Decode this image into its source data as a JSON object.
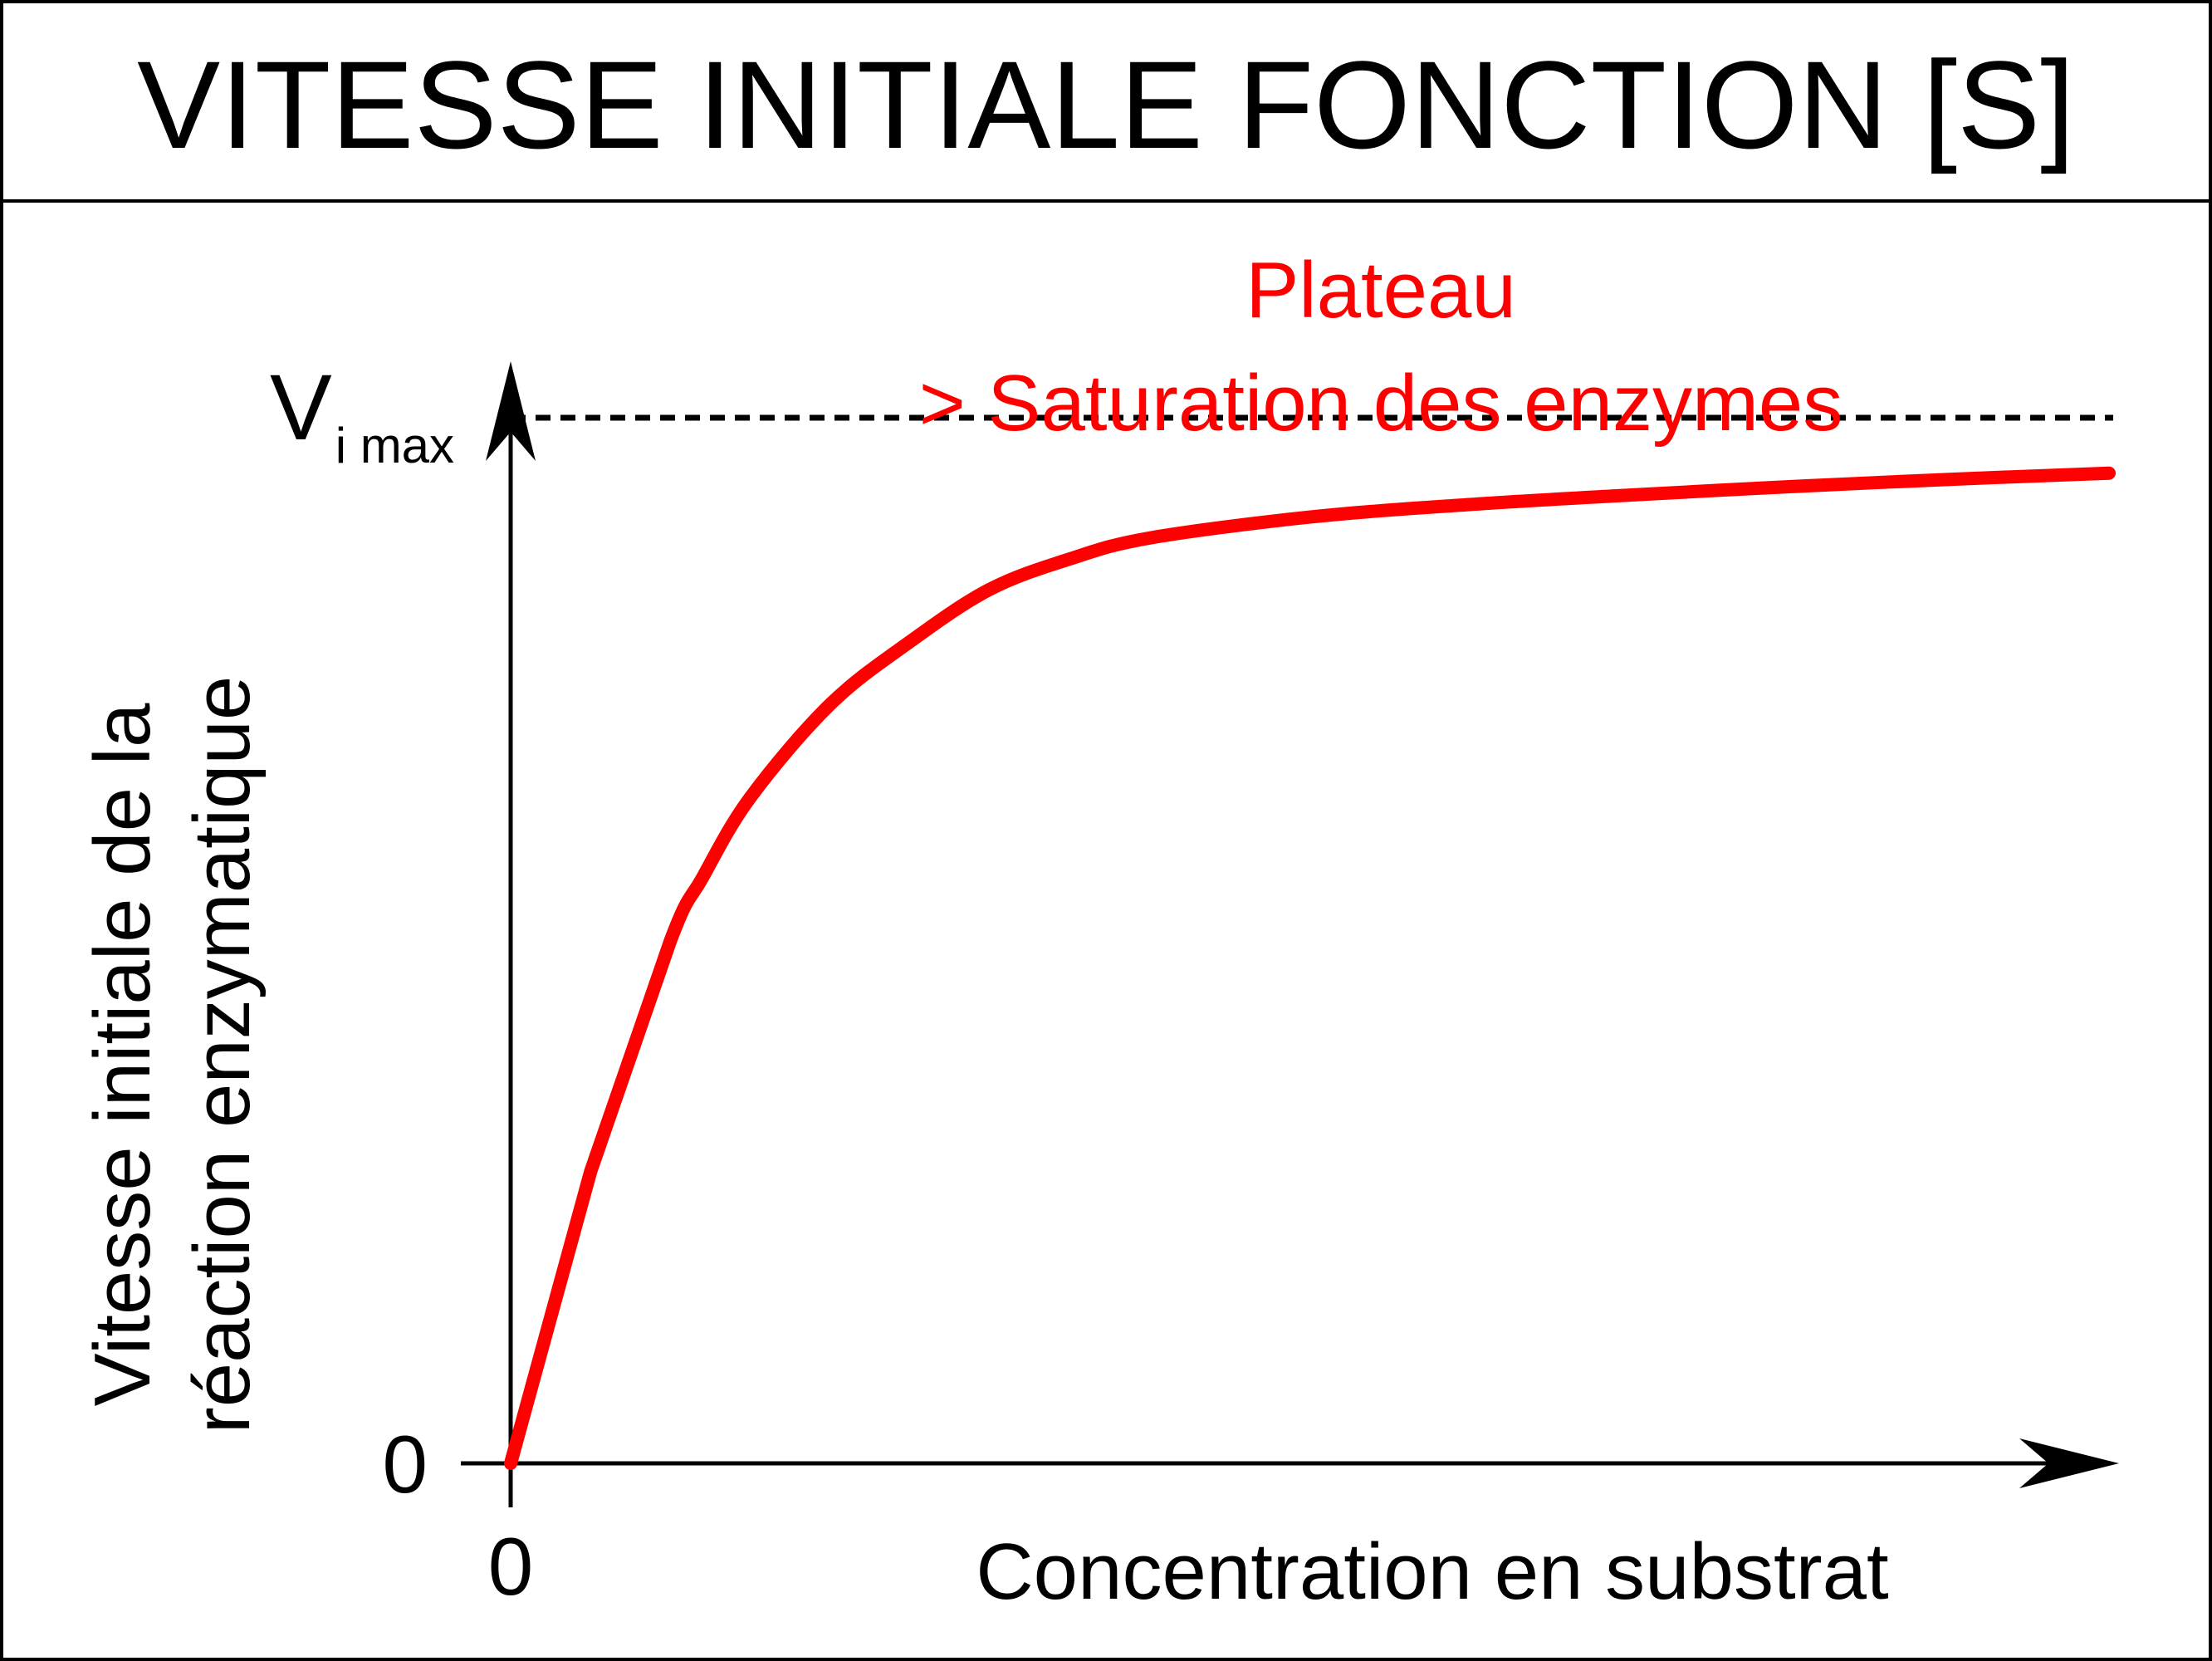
{
  "chart_data": {
    "type": "line",
    "title": "VITESSE INITIALE FONCTION [S]",
    "xlabel": "Concentration en substrat",
    "ylabel": [
      "Vitesse initiale de la",
      "réaction enzymatique"
    ],
    "x_tick_labels": [
      "0"
    ],
    "y_tick_labels": [
      "0"
    ],
    "reference_line": {
      "label_main": "V",
      "label_sub": "i max",
      "y": 1,
      "style": "dashed"
    },
    "annotation": {
      "lines": [
        "Plateau",
        "> Saturation des enzymes"
      ],
      "color": "#ff0000"
    },
    "xlim": [
      0,
      10
    ],
    "ylim": [
      0,
      1.05
    ],
    "grid": false,
    "legend": "none",
    "series": [
      {
        "color": "#ff0000",
        "x": [
          0,
          0.5,
          1.0,
          1.2,
          1.5,
          2.0,
          2.5,
          3.0,
          3.5,
          4.0,
          5.0,
          6.0,
          7.0,
          8.0,
          9.0,
          10.0
        ],
        "y": [
          0,
          0.279,
          0.5,
          0.56,
          0.637,
          0.726,
          0.786,
          0.836,
          0.865,
          0.885,
          0.905,
          0.917,
          0.926,
          0.934,
          0.941,
          0.947
        ]
      }
    ]
  }
}
